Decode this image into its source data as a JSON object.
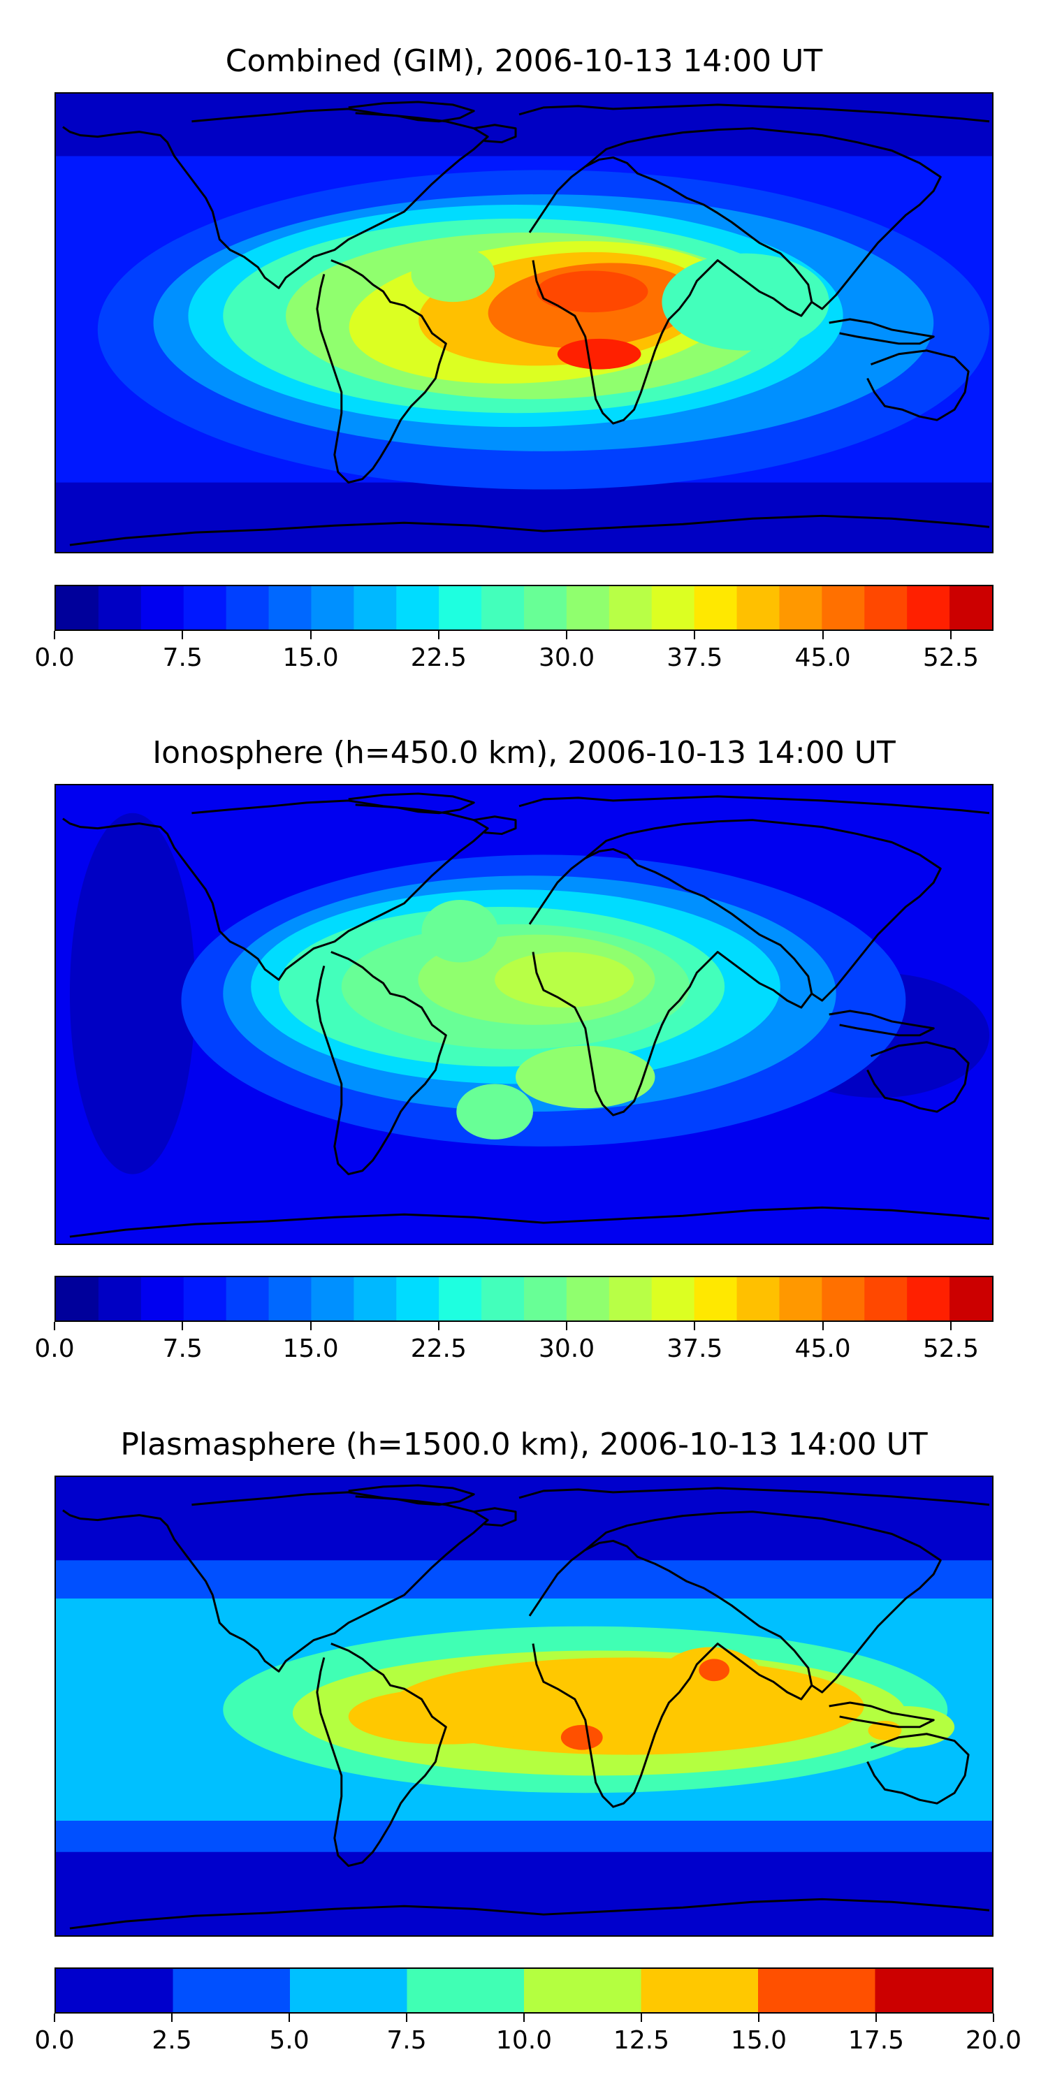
{
  "chart_data": [
    {
      "type": "heatmap",
      "title": "Combined (GIM), 2006-10-13 14:00 UT",
      "colorbar": {
        "min": 0.0,
        "max": 55.0,
        "levels": 22,
        "tick_labels": [
          "0.0",
          "7.5",
          "15.0",
          "22.5",
          "30.0",
          "37.5",
          "45.0",
          "52.5"
        ],
        "tick_values": [
          0.0,
          7.5,
          15.0,
          22.5,
          30.0,
          37.5,
          45.0,
          52.5
        ]
      },
      "peak_value_approx": 50
    },
    {
      "type": "heatmap",
      "title": "Ionosphere  (h=450.0 km), 2006-10-13 14:00 UT",
      "colorbar": {
        "min": 0.0,
        "max": 55.0,
        "levels": 22,
        "tick_labels": [
          "0.0",
          "7.5",
          "15.0",
          "22.5",
          "30.0",
          "37.5",
          "45.0",
          "52.5"
        ],
        "tick_values": [
          0.0,
          7.5,
          15.0,
          22.5,
          30.0,
          37.5,
          45.0,
          52.5
        ]
      },
      "peak_value_approx": 34
    },
    {
      "type": "heatmap",
      "title": "Plasmasphere (h=1500.0 km), 2006-10-13 14:00 UT",
      "colorbar": {
        "min": 0.0,
        "max": 20.0,
        "levels": 8,
        "tick_labels": [
          "0.0",
          "2.5",
          "5.0",
          "7.5",
          "10.0",
          "12.5",
          "15.0",
          "17.5",
          "20.0"
        ],
        "tick_values": [
          0.0,
          2.5,
          5.0,
          7.5,
          10.0,
          12.5,
          15.0,
          17.5,
          20.0
        ]
      },
      "peak_value_approx": 16
    }
  ],
  "colors": {
    "jet_22": [
      "#00009b",
      "#0000c4",
      "#0000f0",
      "#0018ff",
      "#0040ff",
      "#0068ff",
      "#0090ff",
      "#00b8ff",
      "#00dcff",
      "#1effe0",
      "#43ffbb",
      "#68ff96",
      "#90ff6e",
      "#b8ff46",
      "#dcff22",
      "#ffe800",
      "#ffc000",
      "#ff9800",
      "#ff7000",
      "#ff4800",
      "#ff2000",
      "#cc0000",
      "#9b0000"
    ],
    "plasma_8": [
      "#0000cc",
      "#0050ff",
      "#00c0ff",
      "#40ffb4",
      "#b4ff40",
      "#ffc800",
      "#ff5000",
      "#cc0000"
    ],
    "coastline": "#000000"
  }
}
